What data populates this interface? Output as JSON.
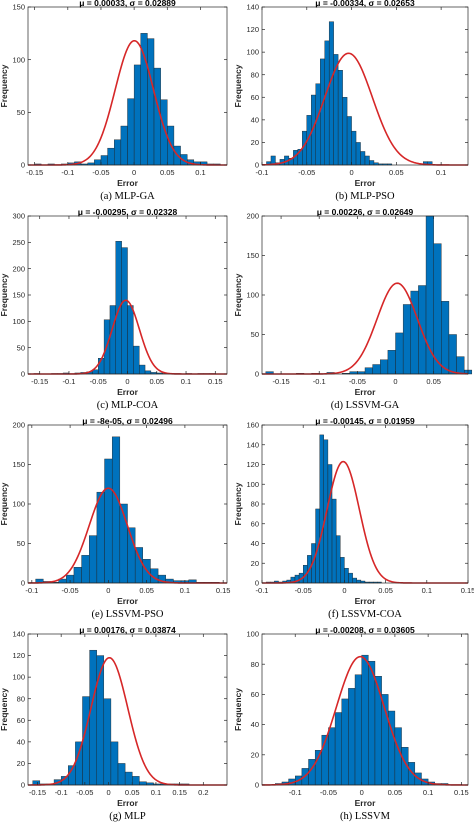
{
  "figure": {
    "panels": [
      {
        "caption": "(a) MLP-GA",
        "title": "μ = 0.00033, σ = 0.02889"
      },
      {
        "caption": "(b) MLP-PSO",
        "title": "μ = -0.00334, σ = 0.02653"
      },
      {
        "caption": "(c) MLP-COA",
        "title": "μ = -0.00295, σ = 0.02328"
      },
      {
        "caption": "(d) LSSVM-GA",
        "title": "μ = 0.00226, σ = 0.02649"
      },
      {
        "caption": "(e) LSSVM-PSO",
        "title": "μ = -8e-05, σ = 0.02496"
      },
      {
        "caption": "(f) LSSVM-COA",
        "title": "μ = -0.00145, σ = 0.01959"
      },
      {
        "caption": "(g) MLP",
        "title": "μ = 0.00176, σ = 0.03874"
      },
      {
        "caption": "(h) LSSVM",
        "title": "μ = -0.00208, σ = 0.03605"
      }
    ]
  },
  "chart_data": [
    {
      "type": "bar",
      "title": "μ = 0.00033, σ = 0.02889",
      "xlabel": "Error",
      "ylabel": "Frequency",
      "xlim": [
        -0.16,
        0.14
      ],
      "ylim": [
        0,
        150
      ],
      "xticks": [
        -0.15,
        -0.1,
        -0.05,
        0,
        0.05,
        0.1
      ],
      "yticks": [
        0,
        50,
        100,
        150
      ],
      "bin_start": -0.15,
      "bin_width": 0.01,
      "values": [
        1,
        0,
        1,
        0,
        1,
        2,
        3,
        1,
        2,
        5,
        9,
        16,
        24,
        37,
        63,
        95,
        125,
        120,
        92,
        62,
        37,
        18,
        10,
        5,
        3,
        3,
        1,
        1
      ],
      "fit": {
        "mu": 0.00033,
        "sigma": 0.02889,
        "peak": 118
      },
      "bar_color": "#0072BD",
      "fit_color": "#D62728",
      "grid": false
    },
    {
      "type": "bar",
      "title": "μ = -0.00334, σ = 0.02653",
      "xlabel": "Error",
      "ylabel": "Frequency",
      "xlim": [
        -0.1,
        0.13
      ],
      "ylim": [
        0,
        140
      ],
      "xticks": [
        -0.1,
        -0.05,
        0,
        0.05,
        0.1
      ],
      "yticks": [
        0,
        20,
        40,
        60,
        80,
        100,
        120,
        140
      ],
      "bin_start": -0.095,
      "bin_width": 0.005,
      "values": [
        3,
        8,
        2,
        5,
        8,
        6,
        13,
        14,
        30,
        44,
        62,
        72,
        94,
        110,
        127,
        98,
        84,
        60,
        43,
        30,
        20,
        12,
        8,
        4,
        2,
        1,
        1,
        1,
        0,
        0,
        0,
        0,
        0,
        0,
        0,
        3,
        3
      ],
      "fit": {
        "mu": -0.00334,
        "sigma": 0.02653,
        "peak": 99
      },
      "bar_color": "#0072BD",
      "fit_color": "#D62728",
      "grid": false
    },
    {
      "type": "bar",
      "title": "μ = -0.00295, σ = 0.02328",
      "xlabel": "Error",
      "ylabel": "Frequency",
      "xlim": [
        -0.17,
        0.17
      ],
      "ylim": [
        0,
        300
      ],
      "xticks": [
        -0.15,
        -0.1,
        -0.05,
        0,
        0.05,
        0.1,
        0.15
      ],
      "yticks": [
        0,
        50,
        100,
        150,
        200,
        250,
        300
      ],
      "bin_start": -0.16,
      "bin_width": 0.01,
      "values": [
        1,
        0,
        0,
        1,
        1,
        2,
        0,
        2,
        3,
        4,
        8,
        30,
        103,
        130,
        252,
        240,
        130,
        53,
        17,
        6,
        3,
        2,
        1,
        1,
        1,
        0,
        1,
        0,
        1,
        1,
        1
      ],
      "fit": {
        "mu": -0.00295,
        "sigma": 0.02328,
        "peak": 140
      },
      "bar_color": "#0072BD",
      "fit_color": "#D62728",
      "grid": false
    },
    {
      "type": "bar",
      "title": "μ = 0.00226, σ = 0.02649",
      "xlabel": "Error",
      "ylabel": "Frequency",
      "xlim": [
        -0.175,
        0.095
      ],
      "ylim": [
        0,
        200
      ],
      "xticks": [
        -0.15,
        -0.1,
        -0.05,
        0,
        0.05
      ],
      "yticks": [
        0,
        50,
        100,
        150,
        200
      ],
      "bin_start": -0.17,
      "bin_width": 0.01,
      "values": [
        3,
        0,
        0,
        0,
        1,
        0,
        1,
        0,
        2,
        0,
        1,
        3,
        3,
        8,
        12,
        18,
        30,
        52,
        88,
        105,
        112,
        200,
        165,
        92,
        50,
        22,
        5
      ],
      "fit": {
        "mu": 0.00226,
        "sigma": 0.02649,
        "peak": 115
      },
      "bar_color": "#0072BD",
      "fit_color": "#D62728",
      "grid": false
    },
    {
      "type": "bar",
      "title": "μ = -8e-05, σ = 0.02496",
      "xlabel": "Error",
      "ylabel": "Frequency",
      "xlim": [
        -0.105,
        0.155
      ],
      "ylim": [
        0,
        200
      ],
      "xticks": [
        -0.1,
        -0.05,
        0,
        0.05,
        0.1,
        0.15
      ],
      "yticks": [
        0,
        50,
        100,
        150,
        200
      ],
      "bin_start": -0.095,
      "bin_width": 0.01,
      "values": [
        5,
        2,
        1,
        5,
        10,
        20,
        35,
        60,
        115,
        157,
        185,
        100,
        70,
        45,
        30,
        18,
        10,
        5,
        3,
        3,
        4,
        1,
        1,
        1
      ],
      "fit": {
        "mu": -8e-05,
        "sigma": 0.02496,
        "peak": 120
      },
      "bar_color": "#0072BD",
      "fit_color": "#D62728",
      "grid": false
    },
    {
      "type": "bar",
      "title": "μ = -0.00145, σ = 0.01959",
      "xlabel": "Error",
      "ylabel": "Frequency",
      "xlim": [
        -0.1,
        0.15
      ],
      "ylim": [
        0,
        160
      ],
      "xticks": [
        -0.1,
        -0.05,
        0,
        0.05,
        0.1,
        0.15
      ],
      "yticks": [
        0,
        20,
        40,
        60,
        80,
        100,
        120,
        140,
        160
      ],
      "bin_start": -0.095,
      "bin_width": 0.005,
      "values": [
        1,
        1,
        2,
        1,
        2,
        3,
        6,
        8,
        10,
        18,
        28,
        40,
        75,
        150,
        145,
        120,
        85,
        48,
        26,
        15,
        10,
        5,
        3,
        2,
        1,
        1,
        1,
        1
      ],
      "fit": {
        "mu": -0.00145,
        "sigma": 0.01959,
        "peak": 123
      },
      "bar_color": "#0072BD",
      "fit_color": "#D62728",
      "grid": false
    },
    {
      "type": "bar",
      "title": "μ = 0.00176, σ = 0.03874",
      "xlabel": "Error",
      "ylabel": "Frequency",
      "xlim": [
        -0.17,
        0.25
      ],
      "ylim": [
        0,
        140
      ],
      "xticks": [
        -0.15,
        -0.1,
        -0.05,
        0,
        0.05,
        0.1,
        0.15,
        0.2
      ],
      "yticks": [
        0,
        20,
        40,
        60,
        80,
        100,
        120,
        140
      ],
      "bin_start": -0.16,
      "bin_width": 0.015,
      "values": [
        4,
        1,
        1,
        5,
        8,
        18,
        40,
        82,
        125,
        120,
        80,
        40,
        20,
        12,
        8,
        3,
        2,
        1,
        1,
        1,
        1,
        1,
        0,
        0,
        0,
        0,
        0,
        0
      ],
      "fit": {
        "mu": 0.00176,
        "sigma": 0.03874,
        "peak": 118
      },
      "bar_color": "#0072BD",
      "fit_color": "#D62728",
      "grid": false
    },
    {
      "type": "bar",
      "title": "μ = -0.00208, σ = 0.03605",
      "xlabel": "Error",
      "ylabel": "Frequency",
      "xlim": [
        -0.15,
        0.16
      ],
      "ylim": [
        0,
        100
      ],
      "xticks": [
        -0.1,
        -0.05,
        0,
        0.05,
        0.1,
        0.15
      ],
      "yticks": [
        0,
        20,
        40,
        60,
        80,
        100
      ],
      "bin_start": -0.13,
      "bin_width": 0.01,
      "values": [
        1,
        2,
        4,
        6,
        11,
        17,
        23,
        33,
        38,
        48,
        57,
        64,
        73,
        86,
        82,
        72,
        60,
        49,
        38,
        25,
        15,
        8,
        4,
        2,
        1,
        1
      ],
      "fit": {
        "mu": -0.00208,
        "sigma": 0.03605,
        "peak": 85
      },
      "bar_color": "#0072BD",
      "fit_color": "#D62728",
      "grid": false
    }
  ]
}
